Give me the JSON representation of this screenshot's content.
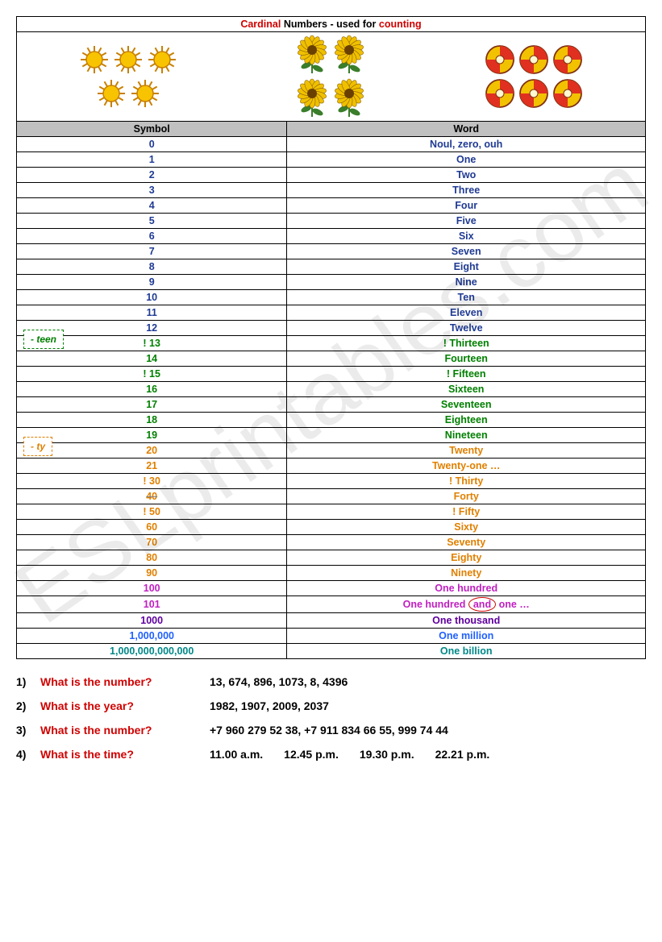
{
  "title": {
    "part1": "Cardinal",
    "part2": " Numbers - used for ",
    "part3": "counting"
  },
  "headers": {
    "symbol": "Symbol",
    "word": "Word"
  },
  "suffix_teen": "- teen",
  "suffix_ty": "- ty",
  "and_word": "and",
  "colors": {
    "red": "#d00000",
    "navy": "#1f3a93",
    "green": "#008000",
    "orange": "#e08000",
    "magenta": "#c020c0",
    "purple": "#6000a0",
    "blue": "#2060ff",
    "teal": "#008888",
    "strike": "#808080"
  },
  "rows": [
    {
      "sym": "0",
      "word": "Noul, zero, ouh",
      "color": "navy"
    },
    {
      "sym": "1",
      "word": "One",
      "color": "navy"
    },
    {
      "sym": "2",
      "word": "Two",
      "color": "navy"
    },
    {
      "sym": "3",
      "word": "Three",
      "color": "navy"
    },
    {
      "sym": "4",
      "word": "Four",
      "color": "navy"
    },
    {
      "sym": "5",
      "word": "Five",
      "color": "navy"
    },
    {
      "sym": "6",
      "word": "Six",
      "color": "navy"
    },
    {
      "sym": "7",
      "word": "Seven",
      "color": "navy"
    },
    {
      "sym": "8",
      "word": "Eight",
      "color": "navy"
    },
    {
      "sym": "9",
      "word": "Nine",
      "color": "navy"
    },
    {
      "sym": "10",
      "word": "Ten",
      "color": "navy"
    },
    {
      "sym": "11",
      "word": "Eleven",
      "color": "navy"
    },
    {
      "sym": "12",
      "word": "Twelve",
      "color": "navy"
    },
    {
      "sym": "!  13",
      "word": "!  Thirteen",
      "color": "green",
      "badge": "teen"
    },
    {
      "sym": "14",
      "word": "Fourteen",
      "color": "green"
    },
    {
      "sym": "!  15",
      "word": "!  Fifteen",
      "color": "green"
    },
    {
      "sym": "16",
      "word": "Sixteen",
      "color": "green"
    },
    {
      "sym": "17",
      "word": "Seventeen",
      "color": "green"
    },
    {
      "sym": "18",
      "word": "Eighteen",
      "color": "green"
    },
    {
      "sym": "19",
      "word": "Nineteen",
      "color": "green"
    },
    {
      "sym": "20",
      "word": "Twenty",
      "color": "orange",
      "badge": "ty"
    },
    {
      "sym": "21",
      "word": "Twenty-one …",
      "color": "orange"
    },
    {
      "sym": "!  30",
      "word": "!  Thirty",
      "color": "orange"
    },
    {
      "sym": "40",
      "word": "Forty",
      "color": "orange",
      "strike": true
    },
    {
      "sym": "!  50",
      "word": "!  Fifty",
      "color": "orange"
    },
    {
      "sym": "60",
      "word": "Sixty",
      "color": "orange"
    },
    {
      "sym": "70",
      "word": "Seventy",
      "color": "orange"
    },
    {
      "sym": "80",
      "word": "Eighty",
      "color": "orange"
    },
    {
      "sym": "90",
      "word": "Ninety",
      "color": "orange"
    },
    {
      "sym": "100",
      "word": "One hundred",
      "color": "magenta"
    },
    {
      "sym": "101",
      "word_pre": "One hundred ",
      "word_post": " one …",
      "color": "magenta",
      "and": true
    },
    {
      "sym": "1000",
      "word": "One thousand",
      "color": "purple"
    },
    {
      "sym": "1,000,000",
      "word": "One million",
      "color": "blue"
    },
    {
      "sym": "1,000,000,000,000",
      "word": "One billion",
      "color": "teal"
    }
  ],
  "exercises": [
    {
      "n": "1)",
      "q": "What is the number?",
      "a": [
        "13, 674, 896, 1073, 8, 4396"
      ]
    },
    {
      "n": "2)",
      "q": "What is the year?",
      "a": [
        "1982, 1907, 2009, 2037"
      ]
    },
    {
      "n": "3)",
      "q": "What is the number?",
      "a": [
        "+7 960 279 52 38,  +7 911 834 66 55,  999 74 44"
      ]
    },
    {
      "n": "4)",
      "q": "What is the time?",
      "a": [
        "11.00 a.m.",
        "12.45 p.m.",
        "19.30 p.m.",
        "22.21 p.m."
      ]
    }
  ],
  "watermark": "ESLprintables.com",
  "icons": {
    "sun": {
      "count": 5,
      "fill": "#f8c300",
      "stroke": "#c88000"
    },
    "flower": {
      "count": 4,
      "petal": "#f0c000",
      "center": "#6a4000",
      "leaf": "#3a7d2a"
    },
    "ball": {
      "count": 6,
      "c1": "#f2c200",
      "c2": "#e03020"
    }
  }
}
